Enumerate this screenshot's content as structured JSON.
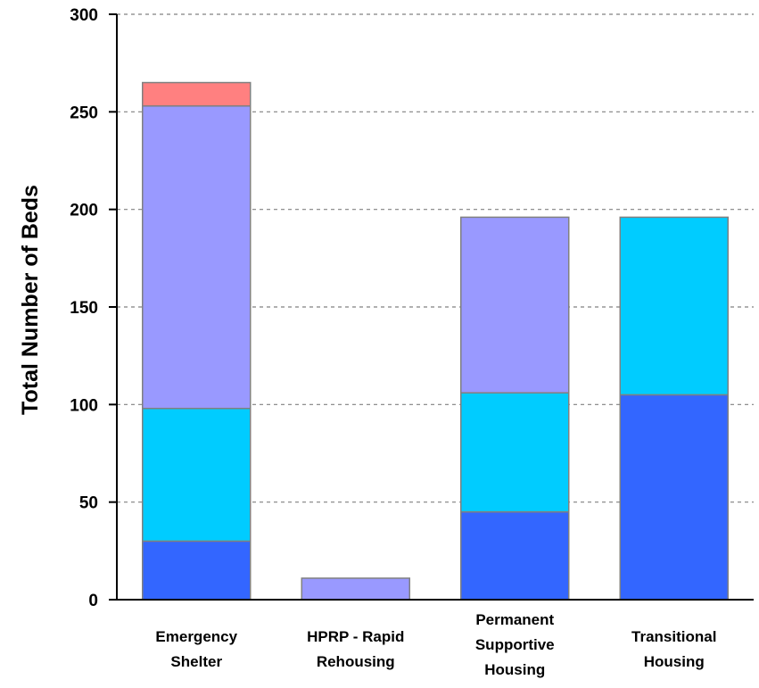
{
  "chart_data": {
    "type": "bar",
    "stacked": true,
    "title": "",
    "xlabel": "",
    "ylabel": "Total Number of Beds",
    "ylim": [
      0,
      300
    ],
    "yticks": [
      0,
      50,
      100,
      150,
      200,
      250,
      300
    ],
    "grid": true,
    "categories": [
      [
        "Emergency",
        "Shelter"
      ],
      [
        "HPRP - Rapid",
        "Rehousing"
      ],
      [
        "Permanent",
        "Supportive",
        "Housing"
      ],
      [
        "Transitional",
        "Housing"
      ]
    ],
    "series": [
      {
        "color": "#3366ff",
        "values": [
          30,
          0,
          45,
          105
        ]
      },
      {
        "color": "#00ccff",
        "values": [
          68,
          0,
          61,
          91
        ]
      },
      {
        "color": "#9999ff",
        "values": [
          155,
          11,
          90,
          0
        ]
      },
      {
        "color": "#ff8080",
        "values": [
          12,
          0,
          0,
          0
        ]
      }
    ]
  }
}
